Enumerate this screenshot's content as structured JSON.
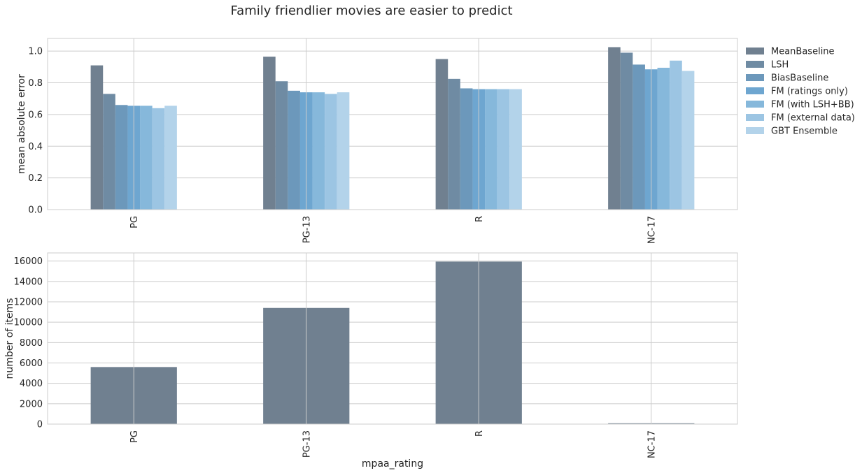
{
  "title": "Family friendlier movies are easier to predict",
  "chart_data": [
    {
      "type": "bar",
      "categories": [
        "PG",
        "PG-13",
        "R",
        "NC-17"
      ],
      "ylabel": "mean absolute error",
      "xlabel": "",
      "ylim": [
        0,
        1.08
      ],
      "yticks": [
        "0.0",
        "0.2",
        "0.4",
        "0.6",
        "0.8",
        "1.0"
      ],
      "grid": true,
      "legend_position": "outside-right",
      "series": [
        {
          "name": "MeanBaseline",
          "color": "#708090",
          "values": [
            0.91,
            0.965,
            0.95,
            1.025
          ]
        },
        {
          "name": "LSH",
          "color": "#6f8ba3",
          "values": [
            0.73,
            0.81,
            0.825,
            0.99
          ]
        },
        {
          "name": "BiasBaseline",
          "color": "#6c98bb",
          "values": [
            0.66,
            0.75,
            0.765,
            0.915
          ]
        },
        {
          "name": "FM (ratings only)",
          "color": "#6ea6d0",
          "values": [
            0.655,
            0.74,
            0.76,
            0.885
          ]
        },
        {
          "name": "FM (with LSH+BB)",
          "color": "#86b8db",
          "values": [
            0.655,
            0.74,
            0.76,
            0.895
          ]
        },
        {
          "name": "FM (external data)",
          "color": "#9cc5e3",
          "values": [
            0.64,
            0.73,
            0.76,
            0.94
          ]
        },
        {
          "name": "GBT Ensemble",
          "color": "#b3d3ea",
          "values": [
            0.655,
            0.74,
            0.76,
            0.875
          ]
        }
      ]
    },
    {
      "type": "bar",
      "categories": [
        "PG",
        "PG-13",
        "R",
        "NC-17"
      ],
      "ylabel": "number of items",
      "xlabel": "mpaa_rating",
      "ylim": [
        0,
        16800
      ],
      "yticks": [
        "0",
        "2000",
        "4000",
        "6000",
        "8000",
        "10000",
        "12000",
        "14000",
        "16000"
      ],
      "grid": true,
      "series": [
        {
          "color": "#708090",
          "values": [
            5600,
            11400,
            15950,
            80
          ]
        }
      ]
    }
  ]
}
